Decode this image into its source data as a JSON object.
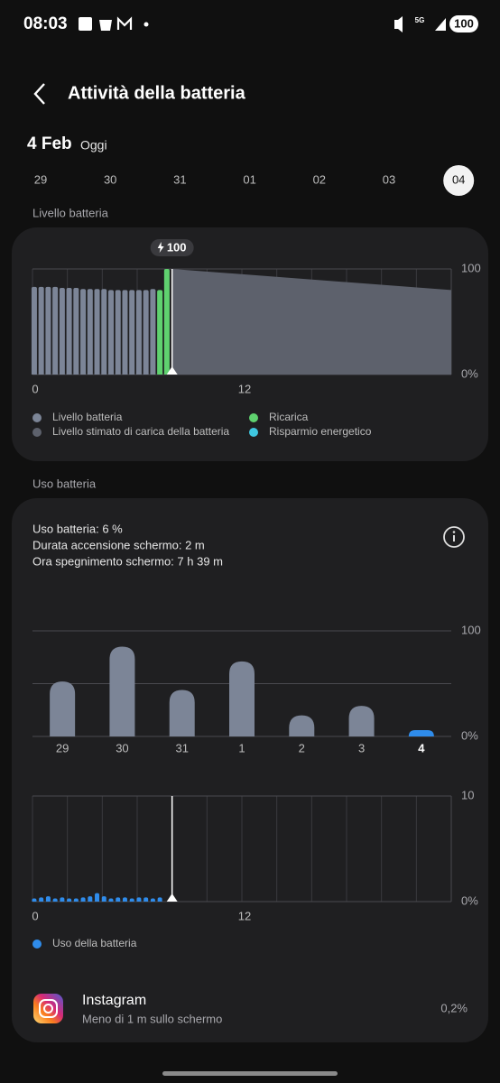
{
  "status_bar": {
    "time": "08:03",
    "network": "5G",
    "battery": "100"
  },
  "header": {
    "title": "Attività della batteria"
  },
  "date": {
    "label": "4 Feb",
    "sub": "Oggi"
  },
  "days": {
    "items": [
      "29",
      "30",
      "31",
      "01",
      "02",
      "03",
      "04"
    ],
    "selected": 6
  },
  "level_section": {
    "title": "Livello batteria"
  },
  "level_chart": {
    "type": "bar",
    "xlim": [
      0,
      24
    ],
    "xticks": [
      0,
      12
    ],
    "xgrid": [
      0,
      2,
      4,
      6,
      8,
      10,
      12,
      14,
      16,
      18,
      20,
      22,
      24
    ],
    "ylim": [
      0,
      100
    ],
    "yticks": [
      {
        "value": 0,
        "label": "0%"
      },
      100
    ],
    "badge": 100,
    "marker_x": 8.0,
    "series": [
      {
        "name": "Livello batteria",
        "color": "#7c8597",
        "x": [
          0.1,
          0.5,
          0.9,
          1.3,
          1.7,
          2.1,
          2.5,
          2.9,
          3.3,
          3.7,
          4.1,
          4.5,
          4.9,
          5.3,
          5.7,
          6.1,
          6.5,
          6.9
        ],
        "values": [
          83,
          83,
          83,
          83,
          82,
          82,
          82,
          81,
          81,
          81,
          81,
          80,
          80,
          80,
          80,
          80,
          80,
          81
        ]
      },
      {
        "name": "Livello stimato di carica della batteria",
        "color": "#5d616c",
        "type": "area",
        "x": [
          8.0,
          24
        ],
        "values": [
          100,
          80
        ]
      },
      {
        "name": "Ricarica",
        "color": "#5fd16f",
        "x": [
          7.3,
          7.7
        ],
        "values": [
          80,
          100
        ]
      },
      {
        "name": "Risparmio energetico",
        "color": "#3fc7e0",
        "x": [],
        "values": []
      }
    ]
  },
  "usage_section": {
    "title": "Uso batteria"
  },
  "usage_info": [
    "Uso batteria: 6 %",
    "Durata accensione schermo: 2 m",
    "Ora spegnimento schermo: 7 h 39 m"
  ],
  "daily_chart": {
    "type": "bar",
    "categories": [
      "29",
      "30",
      "31",
      "1",
      "2",
      "3",
      "4"
    ],
    "values": [
      52,
      85,
      44,
      71,
      20,
      29,
      6
    ],
    "color": "#7c8597",
    "highlight_color": "#2f8ceb",
    "selected": 6,
    "ylim": [
      0,
      100
    ],
    "yticks": [
      {
        "value": 0,
        "label": "0%"
      },
      100
    ],
    "ygrid": [
      50
    ]
  },
  "hourly_chart": {
    "type": "bar",
    "xlim": [
      0,
      24
    ],
    "xticks": [
      0,
      12
    ],
    "xgrid": [
      0,
      2,
      4,
      6,
      8,
      10,
      12,
      14,
      16,
      18,
      20,
      22,
      24
    ],
    "ylim": [
      0,
      10
    ],
    "yticks": [
      {
        "value": 0,
        "label": "0%"
      },
      10
    ],
    "marker_x": 8.0,
    "series": [
      {
        "name": "Uso della batteria",
        "color": "#2f8ceb",
        "x": [
          0.1,
          0.5,
          0.9,
          1.3,
          1.7,
          2.1,
          2.5,
          2.9,
          3.3,
          3.7,
          4.1,
          4.5,
          4.9,
          5.3,
          5.7,
          6.1,
          6.5,
          6.9,
          7.3
        ],
        "values": [
          0.3,
          0.4,
          0.5,
          0.3,
          0.4,
          0.3,
          0.3,
          0.4,
          0.5,
          0.8,
          0.5,
          0.3,
          0.4,
          0.4,
          0.3,
          0.4,
          0.4,
          0.3,
          0.4
        ]
      }
    ]
  },
  "apps": [
    {
      "name": "Instagram",
      "detail": "Meno di 1 m sullo schermo",
      "value": "0,2%"
    }
  ]
}
